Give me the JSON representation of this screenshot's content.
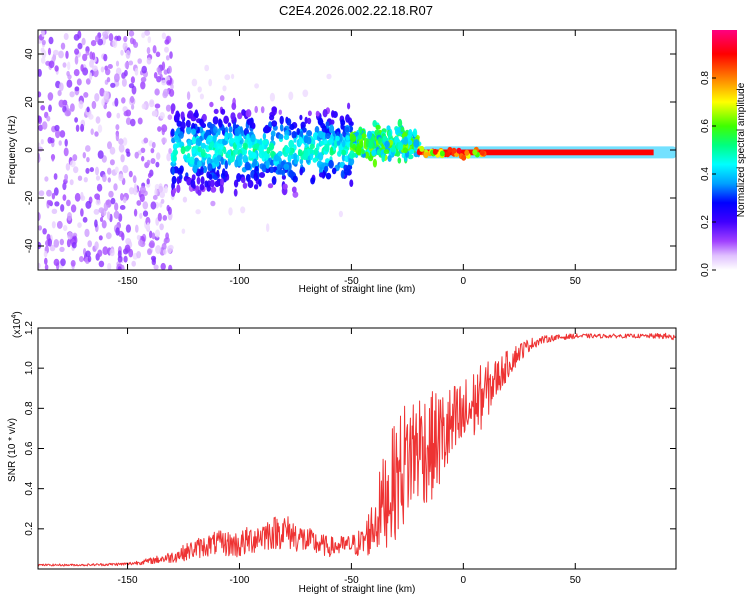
{
  "title": "C2E4.2026.002.22.18.R07",
  "chart_data": [
    {
      "type": "heatmap",
      "title": "C2E4.2026.002.22.18.R07",
      "xlabel": "Height of straight line (km)",
      "ylabel": "Frequency (Hz)",
      "xlim": [
        -190,
        95
      ],
      "ylim": [
        -50,
        50
      ],
      "x_ticks": [
        -150,
        -100,
        -50,
        0,
        50
      ],
      "y_ticks": [
        -40,
        -20,
        0,
        20,
        40
      ],
      "x_tick_labels": [
        "-150",
        "-100",
        "-50",
        "0",
        "50"
      ],
      "y_tick_labels": [
        "-40",
        "-20",
        "0",
        "20",
        "40"
      ],
      "colorbar": {
        "label": "Normalized spectral amplitude",
        "range": [
          0,
          1
        ],
        "ticks": [
          0.0,
          0.2,
          0.4,
          0.6,
          0.8
        ],
        "tick_labels": [
          "0.0",
          "0.2",
          "0.4",
          "0.6",
          "0.8"
        ],
        "colors": [
          "#ffffff",
          "#c080ff",
          "#8000ff",
          "#0000ff",
          "#00ffff",
          "#00ff00",
          "#ffff00",
          "#ff8000",
          "#ff0000",
          "#ff00a0"
        ]
      },
      "regions": [
        {
          "x_range": [
            -190,
            -130
          ],
          "description": "diffuse scattered low-amplitude points",
          "freq_spread": 50,
          "amplitude": 0.05
        },
        {
          "x_range": [
            -130,
            -50
          ],
          "description": "broad band",
          "freq_center": 0,
          "freq_spread": 8,
          "amplitude": 0.25
        },
        {
          "x_range": [
            -50,
            -20
          ],
          "description": "narrowing band",
          "freq_center": 3,
          "freq_spread": 4,
          "amplitude": 0.5
        },
        {
          "x_range": [
            -18,
            85
          ],
          "description": "narrow strong line",
          "freq_center": -1,
          "freq_spread": 1,
          "amplitude": 0.95
        }
      ]
    },
    {
      "type": "line",
      "xlabel": "Height of straight line (km)",
      "ylabel": "SNR (10 * v/v)",
      "y_multiplier": "(x10",
      "y_multiplier_exp": "4",
      "xlim": [
        -190,
        95
      ],
      "ylim": [
        0,
        1.2
      ],
      "x_ticks": [
        -150,
        -100,
        -50,
        0,
        50
      ],
      "y_ticks": [
        0.2,
        0.4,
        0.6,
        0.8,
        1.0,
        1.2
      ],
      "x_tick_labels": [
        "-150",
        "-100",
        "-50",
        "0",
        "50"
      ],
      "y_tick_labels": [
        "0.2",
        "0.4",
        "0.6",
        "0.8",
        "1.0",
        "1.2"
      ],
      "series": [
        {
          "name": "SNR",
          "color": "#ee3333",
          "x": [
            -190,
            -170,
            -150,
            -140,
            -130,
            -120,
            -110,
            -100,
            -90,
            -80,
            -70,
            -60,
            -50,
            -45,
            -40,
            -35,
            -30,
            -25,
            -20,
            -15,
            -10,
            -5,
            0,
            5,
            10,
            15,
            20,
            25,
            30,
            35,
            40,
            50,
            60,
            70,
            80,
            90,
            95
          ],
          "values": [
            0.02,
            0.02,
            0.025,
            0.04,
            0.06,
            0.1,
            0.13,
            0.12,
            0.17,
            0.19,
            0.14,
            0.11,
            0.12,
            0.13,
            0.22,
            0.35,
            0.45,
            0.55,
            0.62,
            0.6,
            0.65,
            0.7,
            0.75,
            0.82,
            0.88,
            0.95,
            1.02,
            1.08,
            1.12,
            1.14,
            1.15,
            1.16,
            1.16,
            1.16,
            1.16,
            1.16,
            1.15
          ],
          "noise": [
            0.005,
            0.005,
            0.008,
            0.015,
            0.03,
            0.05,
            0.06,
            0.07,
            0.08,
            0.09,
            0.07,
            0.05,
            0.05,
            0.08,
            0.15,
            0.25,
            0.3,
            0.32,
            0.3,
            0.28,
            0.25,
            0.22,
            0.2,
            0.18,
            0.15,
            0.1,
            0.07,
            0.05,
            0.03,
            0.02,
            0.015,
            0.012,
            0.01,
            0.01,
            0.01,
            0.015,
            0.02
          ]
        }
      ]
    }
  ]
}
